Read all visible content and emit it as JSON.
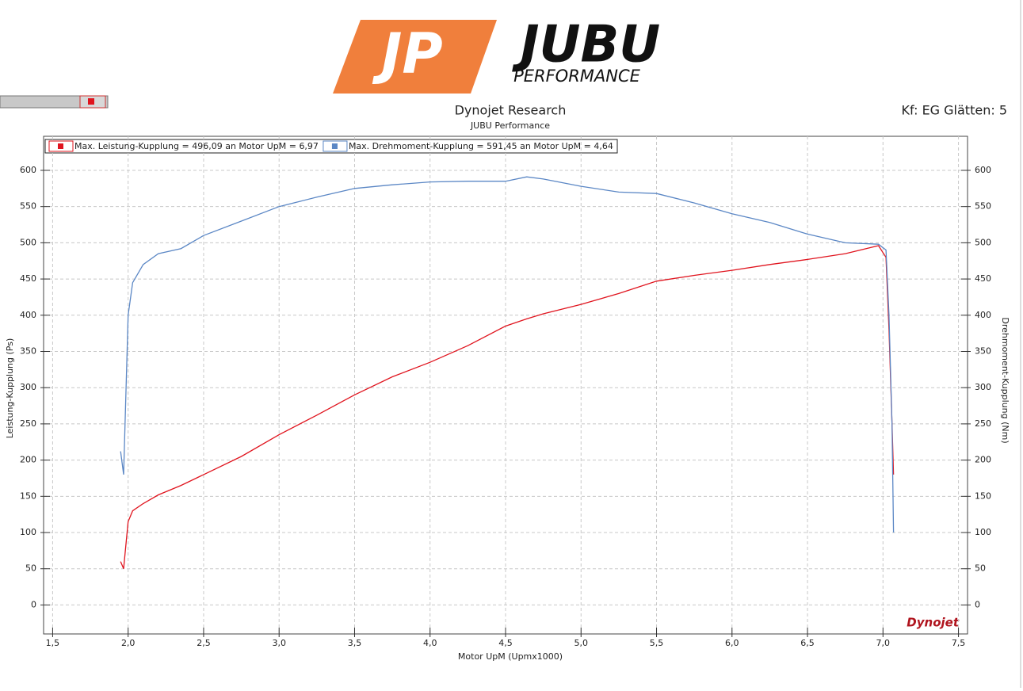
{
  "logo": {
    "mark": "JP",
    "name": "JUBU",
    "tagline": "PERFORMANCE"
  },
  "chart_data": {
    "type": "line",
    "title": "Dynojet Research",
    "subtitle": "JUBU Performance",
    "annotation": "Kf: EG Glätten: 5",
    "watermark": "Dynojet",
    "xlabel": "Motor UpM (Upmx1000)",
    "ylabel": "Leistung-Kupplung (Ps)",
    "y2label": "Drehmoment-Kupplung (Nm)",
    "x": [
      1.95,
      1.97,
      2.0,
      2.03,
      2.1,
      2.2,
      2.35,
      2.5,
      2.75,
      3.0,
      3.25,
      3.5,
      3.75,
      4.0,
      4.25,
      4.5,
      4.64,
      4.75,
      5.0,
      5.25,
      5.5,
      5.75,
      6.0,
      6.25,
      6.5,
      6.75,
      6.97,
      7.02,
      7.04,
      7.06,
      7.07
    ],
    "series": [
      {
        "name": "Max. Leistung-Kupplung = 496,09 an Motor UpM = 6,97",
        "color": "#e0141e",
        "values": [
          60,
          50,
          115,
          130,
          140,
          152,
          165,
          180,
          205,
          235,
          262,
          290,
          315,
          335,
          358,
          385,
          395,
          402,
          415,
          430,
          447,
          455,
          462,
          470,
          477,
          485,
          496,
          480,
          380,
          250,
          180
        ]
      },
      {
        "name": "Max. Drehmoment-Kupplung = 591,45 an Motor UpM = 4,64",
        "color": "#5b87c5",
        "axis": "y2",
        "values": [
          212,
          180,
          400,
          445,
          470,
          485,
          492,
          510,
          530,
          550,
          563,
          575,
          580,
          584,
          585,
          585,
          591,
          588,
          578,
          570,
          568,
          555,
          540,
          528,
          512,
          500,
          498,
          490,
          400,
          250,
          100
        ]
      }
    ],
    "xlim": [
      1.44,
      7.56
    ],
    "xticks": [
      {
        "value": 1.5,
        "label": "1,5"
      },
      {
        "value": 2.0,
        "label": "2,0"
      },
      {
        "value": 2.5,
        "label": "2,5"
      },
      {
        "value": 3.0,
        "label": "3,0"
      },
      {
        "value": 3.5,
        "label": "3,5"
      },
      {
        "value": 4.0,
        "label": "4,0"
      },
      {
        "value": 4.5,
        "label": "4,5"
      },
      {
        "value": 5.0,
        "label": "5,0"
      },
      {
        "value": 5.5,
        "label": "5,5"
      },
      {
        "value": 6.0,
        "label": "6,0"
      },
      {
        "value": 6.5,
        "label": "6,5"
      },
      {
        "value": 7.0,
        "label": "7,0"
      },
      {
        "value": 7.5,
        "label": "7,5"
      }
    ],
    "ylim": [
      -40,
      647
    ],
    "yticks": [
      0,
      50,
      100,
      150,
      200,
      250,
      300,
      350,
      400,
      450,
      500,
      550,
      600
    ],
    "y2lim": [
      -40,
      647
    ],
    "y2ticks": [
      0,
      50,
      100,
      150,
      200,
      250,
      300,
      350,
      400,
      450,
      500,
      550,
      600
    ],
    "grid": true
  }
}
